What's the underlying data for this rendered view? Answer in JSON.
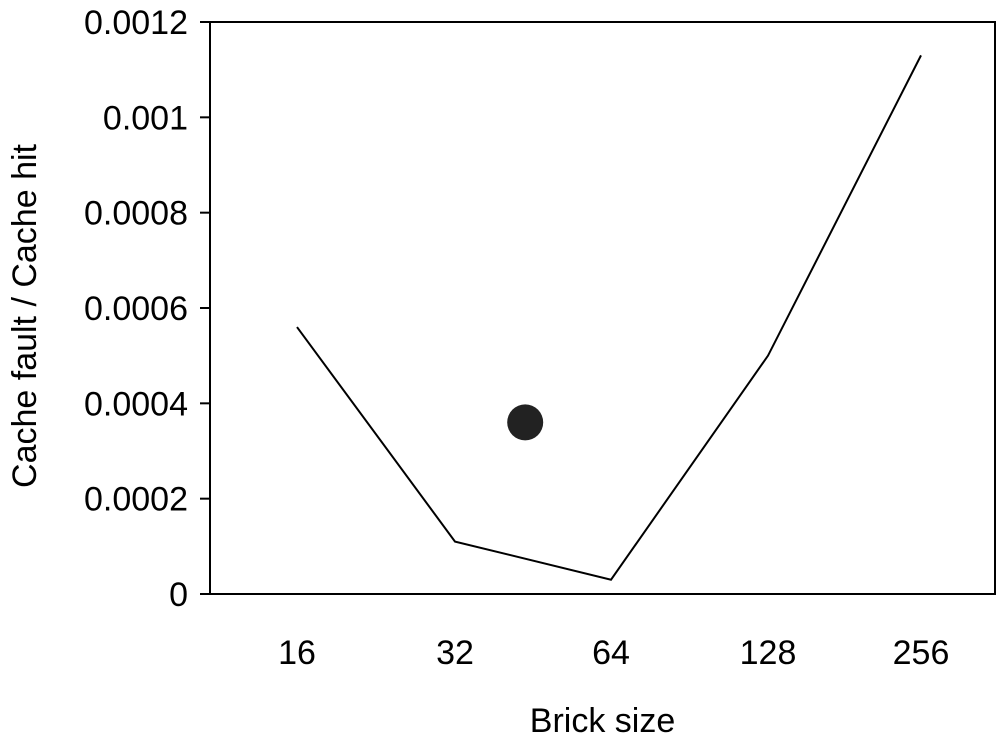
{
  "chart_data": {
    "type": "line",
    "title": "",
    "xlabel": "Brick size",
    "ylabel": "Cache fault / Cache hit",
    "categories": [
      "16",
      "32",
      "64",
      "128",
      "256"
    ],
    "series": [
      {
        "values": [
          0.00056,
          0.00011,
          3e-05,
          0.0005,
          0.00113
        ]
      }
    ],
    "marker": {
      "x_position": 1.45,
      "y": 0.00036
    },
    "ylim": [
      0,
      0.0012
    ],
    "yticks": [
      {
        "value": 0,
        "label": "0"
      },
      {
        "value": 0.0002,
        "label": "0.0002"
      },
      {
        "value": 0.0004,
        "label": "0.0004"
      },
      {
        "value": 0.0006,
        "label": "0.0006"
      },
      {
        "value": 0.0008,
        "label": "0.0008"
      },
      {
        "value": 0.001,
        "label": "0.001"
      },
      {
        "value": 0.0012,
        "label": "0.0012"
      }
    ],
    "grid": false,
    "legend": "none",
    "line_color": "#000000",
    "marker_color": "#222222"
  }
}
